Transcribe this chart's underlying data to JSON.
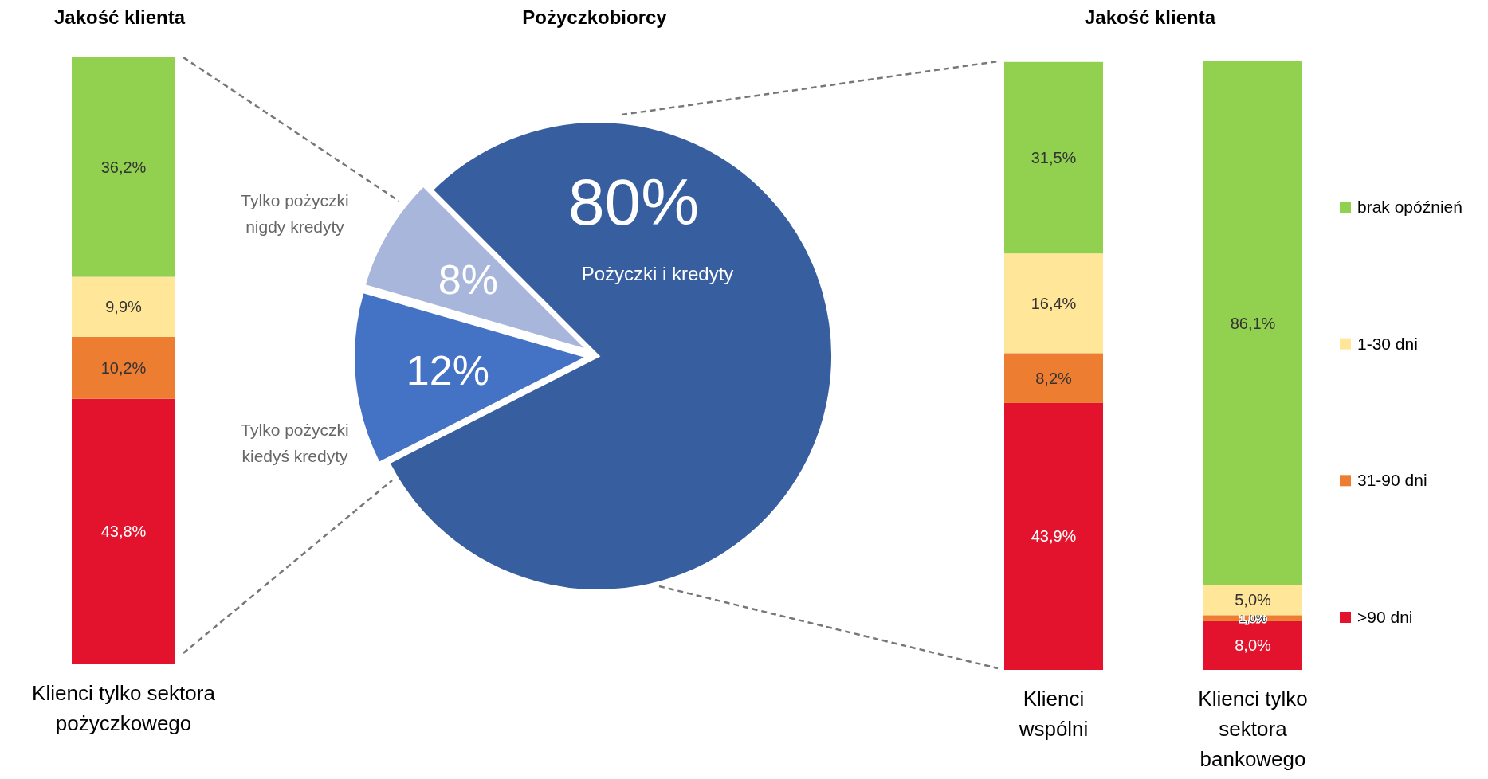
{
  "chart_data": [
    {
      "type": "bar",
      "title": "Jakość klienta",
      "stacked": true,
      "categories": [
        "Klienci tylko sektora pożyczkowego"
      ],
      "legend": false,
      "series": [
        {
          "color": "#e3132d",
          "values": [
            43.8
          ],
          "value_labels": [
            "43,8%"
          ]
        },
        {
          "color": "#ed7d31",
          "values": [
            10.2
          ],
          "value_labels": [
            "10,2%"
          ]
        },
        {
          "color": "#ffe699",
          "values": [
            9.9
          ],
          "value_labels": [
            "9,9%"
          ]
        },
        {
          "color": "#92d050",
          "values": [
            36.2
          ],
          "value_labels": [
            "36,2%"
          ]
        }
      ]
    },
    {
      "type": "pie",
      "title": "Pożyczkobiorcy",
      "categories": [
        "Pożyczki i kredyty",
        "Tylko pożyczki kiedyś kredyty",
        "Tylko pożyczki nigdy kredyty"
      ],
      "values": [
        80,
        12,
        8
      ],
      "colors": [
        "#375e9f",
        "#4472c4",
        "#a9b6dc"
      ],
      "value_labels": [
        "80%",
        "12%",
        "8%"
      ]
    },
    {
      "type": "bar",
      "title": "Jakość klienta",
      "stacked": true,
      "categories": [
        "Klienci wspólni",
        "Klienci tylko sektora bankowego"
      ],
      "legend": "right",
      "series": [
        {
          "name": ">90 dni",
          "color": "#e3132d",
          "values": [
            43.9,
            8.0
          ],
          "value_labels": [
            "43,9%",
            "8,0%"
          ]
        },
        {
          "name": "31-90 dni",
          "color": "#ed7d31",
          "values": [
            8.2,
            1.0
          ],
          "value_labels": [
            "8,2%",
            "1,0%"
          ]
        },
        {
          "name": "1-30 dni",
          "color": "#ffe699",
          "values": [
            16.4,
            5.0
          ],
          "value_labels": [
            "16,4%",
            "5,0%"
          ]
        },
        {
          "name": "brak opóźnień",
          "color": "#92d050",
          "values": [
            31.5,
            86.1
          ],
          "value_labels": [
            "31,5%",
            "86,1%"
          ]
        }
      ]
    }
  ]
}
